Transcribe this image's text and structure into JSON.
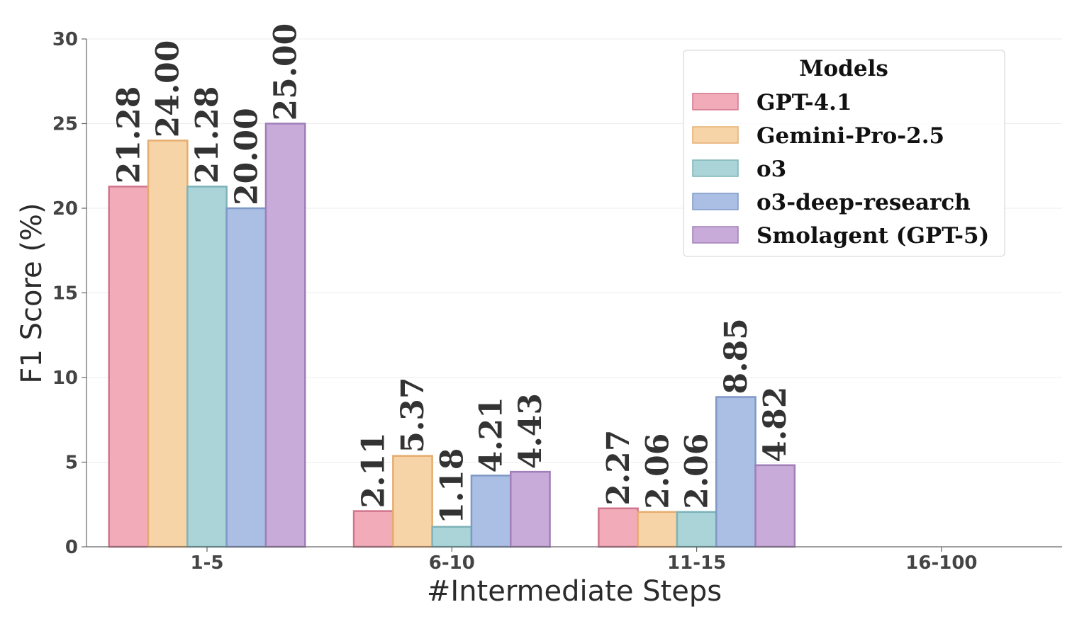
{
  "chart_data": {
    "type": "bar",
    "xlabel": "#Intermediate Steps",
    "ylabel": "F1 Score (%)",
    "ylim": [
      0,
      30
    ],
    "yticks": [
      0,
      5,
      10,
      15,
      20,
      25,
      30
    ],
    "grid": true,
    "legend_title": "Models",
    "legend_position": "top-right",
    "categories": [
      "1-5",
      "6-10",
      "11-15",
      "16-100"
    ],
    "series": [
      {
        "name": "GPT-4.1",
        "color": "#f2abb9",
        "edge": "#d1758c",
        "values": [
          21.28,
          2.11,
          2.27,
          null
        ],
        "labels": [
          "21.28",
          "2.11",
          "2.27",
          null
        ]
      },
      {
        "name": "Gemini-Pro-2.5",
        "color": "#f6d4a8",
        "edge": "#e6ad6e",
        "values": [
          24.0,
          5.37,
          2.06,
          null
        ],
        "labels": [
          "24.00",
          "5.37",
          "2.06",
          null
        ]
      },
      {
        "name": "o3",
        "color": "#aad4d8",
        "edge": "#7db3b9",
        "values": [
          21.28,
          1.18,
          2.06,
          null
        ],
        "labels": [
          "21.28",
          "1.18",
          "2.06",
          null
        ]
      },
      {
        "name": "o3-deep-research",
        "color": "#aabfe3",
        "edge": "#7f98c6",
        "values": [
          20.0,
          4.21,
          8.85,
          null
        ],
        "labels": [
          "20.00",
          "4.21",
          "8.85",
          null
        ]
      },
      {
        "name": "Smolagent (GPT-5)",
        "color": "#c8abd9",
        "edge": "#a07fb9",
        "values": [
          25.0,
          4.43,
          4.82,
          null
        ],
        "labels": [
          "25.00",
          "4.43",
          "4.82",
          null
        ]
      }
    ]
  }
}
